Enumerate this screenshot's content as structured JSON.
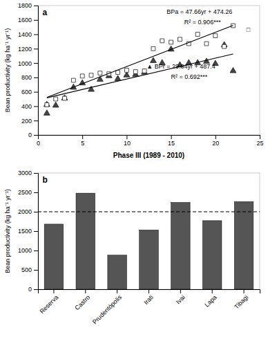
{
  "chart_data": [
    {
      "type": "scatter",
      "title": "a",
      "x_label": "Phase III  (1989 - 2010)",
      "y_label": "Bean productivity (kg ha⁻¹ yr⁻¹)",
      "xlim": [
        0,
        25
      ],
      "ylim": [
        0,
        1800
      ],
      "xticks": [
        0,
        5,
        10,
        15,
        20,
        25
      ],
      "yticks": [
        0,
        200,
        400,
        600,
        800,
        1000,
        1200,
        1400,
        1600,
        1800
      ],
      "grid": false,
      "series": [
        {
          "type": "scatter",
          "marker": "triangle",
          "color": "#444444",
          "x": [
            1,
            1,
            2,
            3,
            4,
            5,
            6,
            7,
            8,
            9,
            10,
            11,
            12,
            13,
            14,
            15,
            16,
            17,
            18,
            19,
            20,
            21,
            22
          ],
          "values": [
            300,
            420,
            410,
            510,
            660,
            720,
            630,
            770,
            820,
            780,
            830,
            840,
            870,
            1030,
            1000,
            1190,
            970,
            1000,
            1000,
            1020,
            990,
            1250,
            890
          ]
        },
        {
          "type": "scatter",
          "marker": "square",
          "color": "#ffffff",
          "x": [
            1,
            2,
            3,
            4,
            5,
            6,
            7,
            8,
            9,
            10,
            11,
            12,
            13,
            14,
            15,
            16,
            17,
            18,
            19,
            20,
            21,
            22
          ],
          "values": [
            420,
            500,
            510,
            760,
            820,
            830,
            860,
            850,
            870,
            900,
            880,
            890,
            1200,
            1310,
            1290,
            1330,
            1270,
            1400,
            1270,
            1380,
            1230,
            1520
          ]
        },
        {
          "type": "line",
          "color": "#000000",
          "x": [
            1,
            22
          ],
          "values": [
            521.92,
            1522.78
          ]
        },
        {
          "type": "line",
          "color": "#000000",
          "x": [
            1,
            22
          ],
          "values": [
            516.44,
            1126.28
          ]
        }
      ],
      "annotations": [
        "BPa = 47.66yr + 474.26",
        "R² = 0.906***",
        "□",
        "▲ BPr = 29.04yr + 487.4",
        "R² = 0.692***"
      ]
    },
    {
      "type": "bar",
      "title": "b",
      "y_label": "Bean productivity (kg ha⁻¹ yr⁻¹)",
      "categories": [
        "Reserva",
        "Castro",
        "Prudentópolis",
        "Irati",
        "Ivai",
        "Lapa",
        "Tibagi"
      ],
      "values": [
        1680,
        2480,
        880,
        1530,
        2240,
        1770,
        2260
      ],
      "color": "#555555",
      "ylim": [
        0,
        3000
      ],
      "yticks": [
        0,
        500,
        1000,
        1500,
        2000,
        2500,
        3000
      ],
      "hline": 2000,
      "grid": false
    }
  ]
}
